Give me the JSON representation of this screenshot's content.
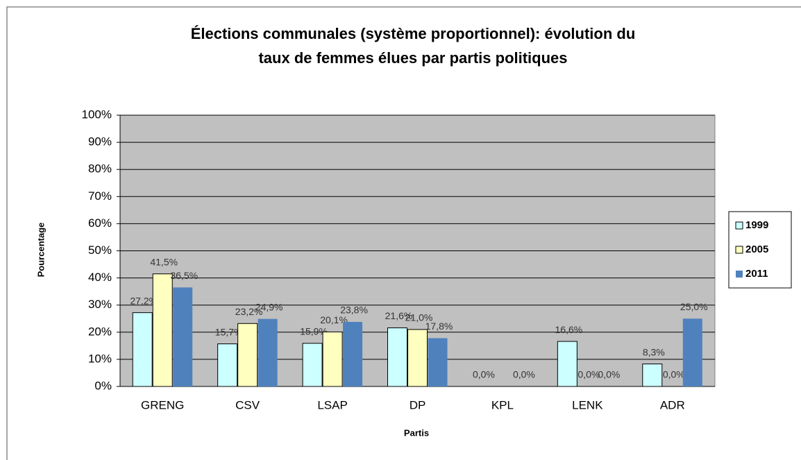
{
  "chart_data": {
    "type": "bar",
    "title": [
      "Élections communales (système proportionnel): évolution du",
      "taux de femmes élues par partis politiques"
    ],
    "x_label": "Partis",
    "y_label": "Pourcentage",
    "categories": [
      "GRENG",
      "CSV",
      "LSAP",
      "DP",
      "KPL",
      "LENK",
      "ADR"
    ],
    "series": [
      {
        "name": "1999",
        "color": "#ccffff",
        "values": [
          27.2,
          15.7,
          15.9,
          21.6,
          0.0,
          16.6,
          8.3
        ],
        "value_labels": [
          "27,2%",
          "15,7%",
          "15,9%",
          "21,6%",
          "0,0%",
          "16,6%",
          "8,3%"
        ]
      },
      {
        "name": "2005",
        "color": "#ffffc0",
        "values": [
          41.5,
          23.2,
          20.1,
          21.0,
          null,
          0.0,
          0.0
        ],
        "value_labels": [
          "41,5%",
          "23,2%",
          "20,1%",
          "21,0%",
          null,
          "0,0%",
          "0,0%"
        ]
      },
      {
        "name": "2011",
        "color": "#4f81bd",
        "values": [
          36.5,
          24.9,
          23.8,
          17.8,
          0.0,
          0.0,
          25.0
        ],
        "value_labels": [
          "36,5%",
          "24,9%",
          "23,8%",
          "17,8%",
          "0,0%",
          "0,0%",
          "25,0%"
        ]
      }
    ],
    "ylim": [
      0,
      100
    ],
    "yticks": [
      {
        "value": 0,
        "label": "0%"
      },
      {
        "value": 10,
        "label": "10%"
      },
      {
        "value": 20,
        "label": "20%"
      },
      {
        "value": 30,
        "label": "30%"
      },
      {
        "value": 40,
        "label": "40%"
      },
      {
        "value": 50,
        "label": "50%"
      },
      {
        "value": 60,
        "label": "60%"
      },
      {
        "value": 70,
        "label": "70%"
      },
      {
        "value": 80,
        "label": "80%"
      },
      {
        "value": 90,
        "label": "90%"
      },
      {
        "value": 100,
        "label": "100%"
      }
    ],
    "grid": true,
    "legend": "right"
  }
}
